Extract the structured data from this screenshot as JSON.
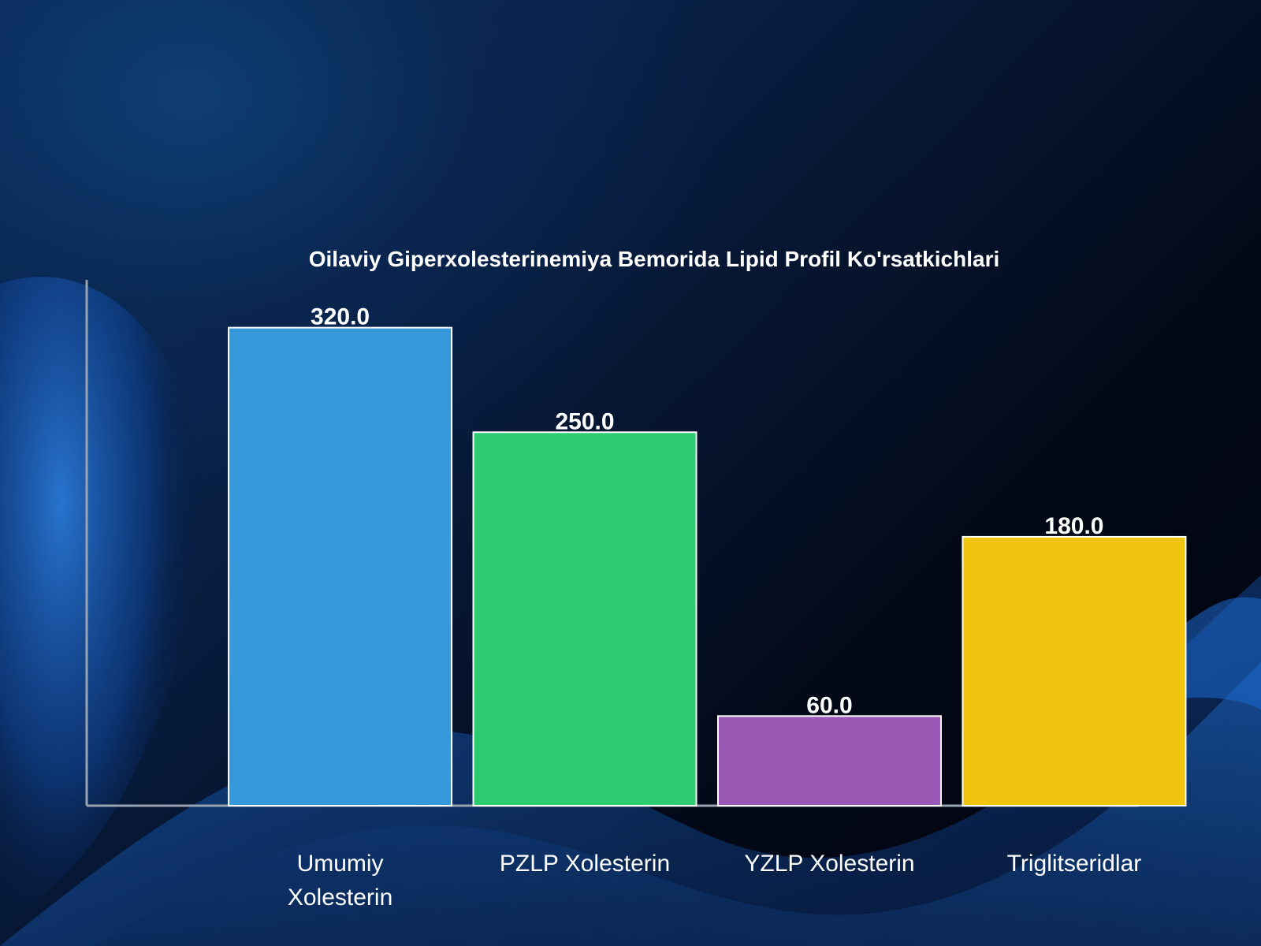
{
  "colors": {
    "axis": "#9aa3b2",
    "bar_border": "#ffffff"
  },
  "chart_data": {
    "type": "bar",
    "title": "Oilaviy Giperxolesterinemiya Bemorida Lipid Profil Ko'rsatkichlari",
    "xlabel": "",
    "ylabel": "",
    "ylim": [
      0,
      352
    ],
    "grid": false,
    "legend": "none",
    "categories": [
      [
        "Umumiy",
        "Xolesterin"
      ],
      [
        "PZLP Xolesterin"
      ],
      [
        "YZLP Xolesterin"
      ],
      [
        "Triglitseridlar"
      ]
    ],
    "values": [
      320.0,
      250.0,
      60.0,
      180.0
    ],
    "value_labels": [
      "320.0",
      "250.0",
      "60.0",
      "180.0"
    ],
    "bar_colors": [
      "#3498db",
      "#2ecc71",
      "#9b59b6",
      "#f1c40f"
    ]
  }
}
